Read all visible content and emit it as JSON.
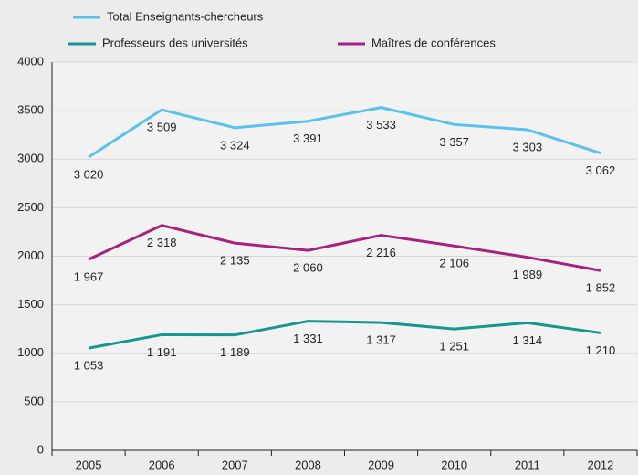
{
  "chart_data": {
    "type": "line",
    "categories": [
      "2005",
      "2006",
      "2007",
      "2008",
      "2009",
      "2010",
      "2011",
      "2012"
    ],
    "series": [
      {
        "name": "Total Enseignants-chercheurs",
        "color": "#5bc1ea",
        "values": [
          3020,
          3509,
          3324,
          3391,
          3533,
          3357,
          3303,
          3062
        ],
        "value_labels": [
          "3 020",
          "3 509",
          "3 324",
          "3 391",
          "3 533",
          "3 357",
          "3 303",
          "3 062"
        ]
      },
      {
        "name": "Professeurs des universités",
        "color": "#15978f",
        "values": [
          1053,
          1191,
          1189,
          1331,
          1317,
          1251,
          1314,
          1210
        ],
        "value_labels": [
          "1 053",
          "1 191",
          "1 189",
          "1 331",
          "1 317",
          "1 251",
          "1 314",
          "1 210"
        ]
      },
      {
        "name": "Maîtres de conférences",
        "color": "#a5237f",
        "values": [
          1967,
          2318,
          2135,
          2060,
          2216,
          2106,
          1989,
          1852
        ],
        "value_labels": [
          "1 967",
          "2 318",
          "2 135",
          "2 060",
          "2 216",
          "2 106",
          "1 989",
          "1 852"
        ]
      }
    ],
    "ylim": [
      0,
      4000
    ],
    "yticks": [
      0,
      500,
      1000,
      1500,
      2000,
      2500,
      3000,
      3500,
      4000
    ],
    "grid": true
  }
}
